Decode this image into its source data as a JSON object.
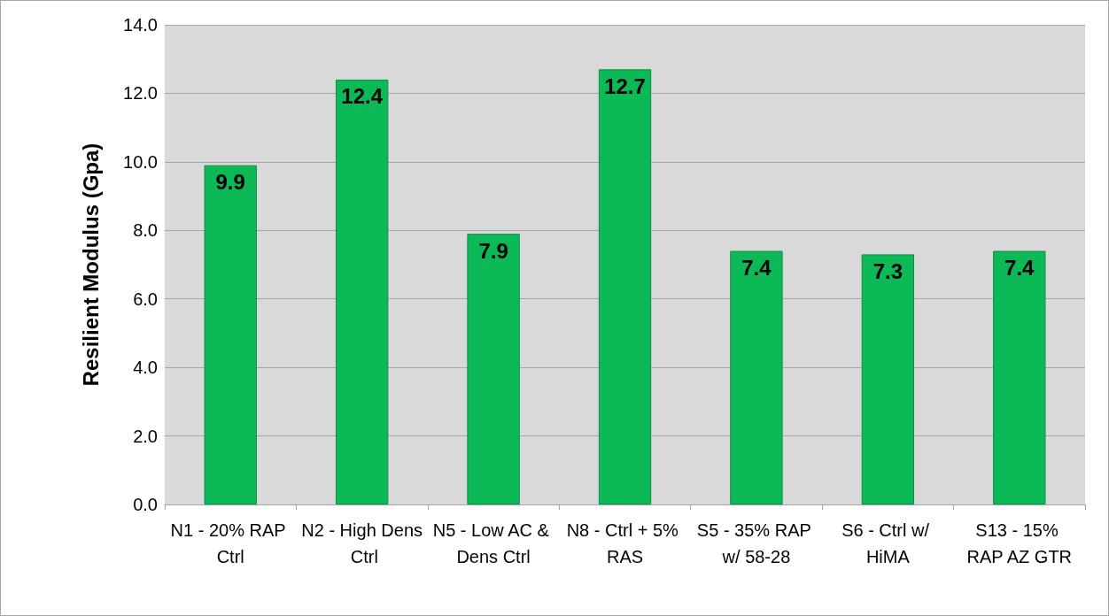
{
  "chart_data": {
    "type": "bar",
    "ylabel": "Resilient Modulus (Gpa)",
    "categories": [
      "N1 - 20% RAP Ctrl",
      "N2 - High Dens Ctrl",
      "N5 - Low AC & Dens Ctrl",
      "N8 - Ctrl + 5% RAS",
      "S5 - 35% RAP w/ 58-28",
      "S6 - Ctrl w/ HiMA",
      "S13 - 15% RAP AZ GTR"
    ],
    "values": [
      9.9,
      12.4,
      7.9,
      12.7,
      7.4,
      7.3,
      7.4
    ],
    "color": "#0cb957",
    "ylim": [
      0,
      14
    ],
    "yticks": [
      {
        "value": 0,
        "label": "0.0"
      },
      {
        "value": 2,
        "label": "2.0"
      },
      {
        "value": 4,
        "label": "4.0"
      },
      {
        "value": 6,
        "label": "6.0"
      },
      {
        "value": 8,
        "label": "8.0"
      },
      {
        "value": 10,
        "label": "10.0"
      },
      {
        "value": 12,
        "label": "12.0"
      },
      {
        "value": 14,
        "label": "14.0"
      }
    ],
    "grid": "y",
    "data_labels": true
  }
}
